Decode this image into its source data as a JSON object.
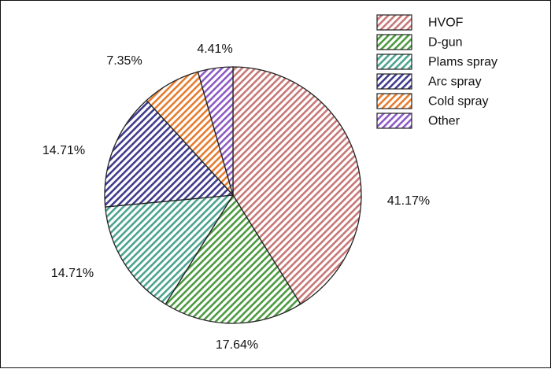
{
  "chart_data": {
    "type": "pie",
    "title": "",
    "legend_position": "top-right",
    "slices": [
      {
        "name": "HVOF",
        "value": 41.17,
        "label": "41.17%",
        "color": "#c77777"
      },
      {
        "name": "D-gun",
        "value": 17.64,
        "label": "17.64%",
        "color": "#4c9a3f"
      },
      {
        "name": "Plams spray",
        "value": 14.71,
        "label": "14.71%",
        "color": "#4aa38e"
      },
      {
        "name": "Arc spray",
        "value": 14.71,
        "label": "14.71%",
        "color": "#3f3a8c"
      },
      {
        "name": "Cold spray",
        "value": 7.35,
        "label": "7.35%",
        "color": "#e57c2e"
      },
      {
        "name": "Other",
        "value": 4.41,
        "label": "4.41%",
        "color": "#8b5ac4"
      }
    ],
    "slice_fill": "diagonal-hatch",
    "outline_color": "#222222"
  }
}
